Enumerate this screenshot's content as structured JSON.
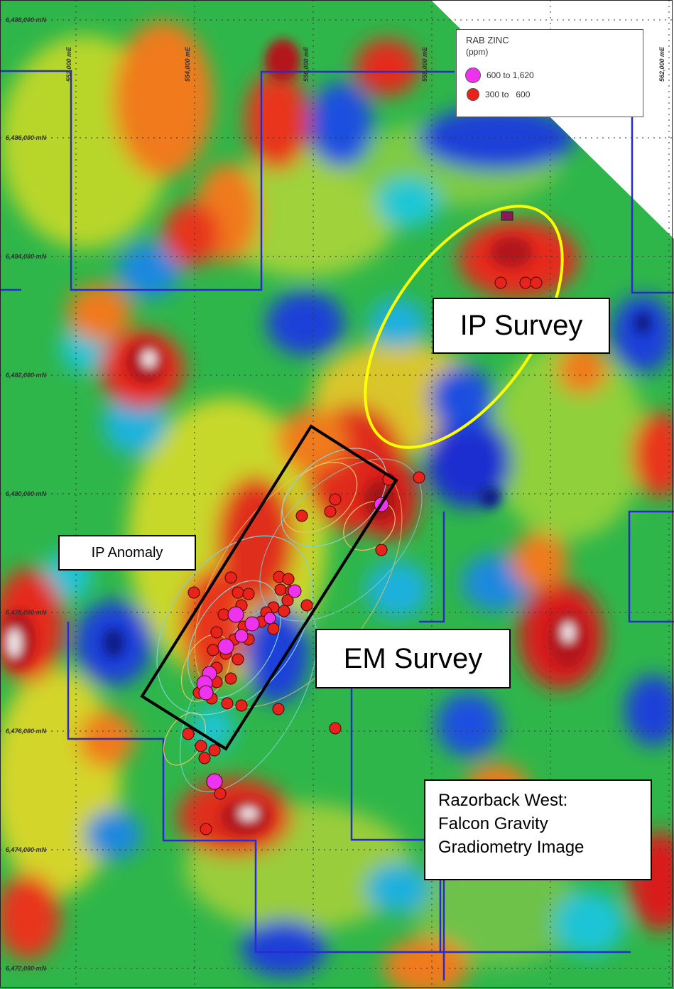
{
  "northings": [
    "6,488,000 mN",
    "6,486,000 mN",
    "6,484,000 mN",
    "6,482,000 mN",
    "6,480,000 mN",
    "6,478,000 mN",
    "6,476,000 mN",
    "6,474,000 mN",
    "6,472,000 mN"
  ],
  "eastings": [
    "552,000 mE",
    "554,000 mE",
    "556,000 mE",
    "558,000 mE",
    "562,000 mE"
  ],
  "legend": {
    "title": "RAB ZINC",
    "unit": "(ppm)",
    "high_label": "600 to 1,620",
    "low_label": "300 to   600",
    "high_color": "#ee33ee",
    "low_color": "#e8231c"
  },
  "callouts": {
    "ip_survey": "IP Survey",
    "em_survey": "EM Survey",
    "ip_anomaly": "IP Anomaly",
    "caption_lines": [
      "Razorback West:",
      "Falcon Gravity",
      "Gradiometry Image"
    ]
  },
  "colors": {
    "boundary": "#2a2ad0",
    "ip_survey_outline": "#ffff00",
    "em_survey_outline": "#000000",
    "gravity_high": "#d81e1e",
    "gravity_low": "#1f3fd8",
    "background": "#2fb64a"
  }
}
